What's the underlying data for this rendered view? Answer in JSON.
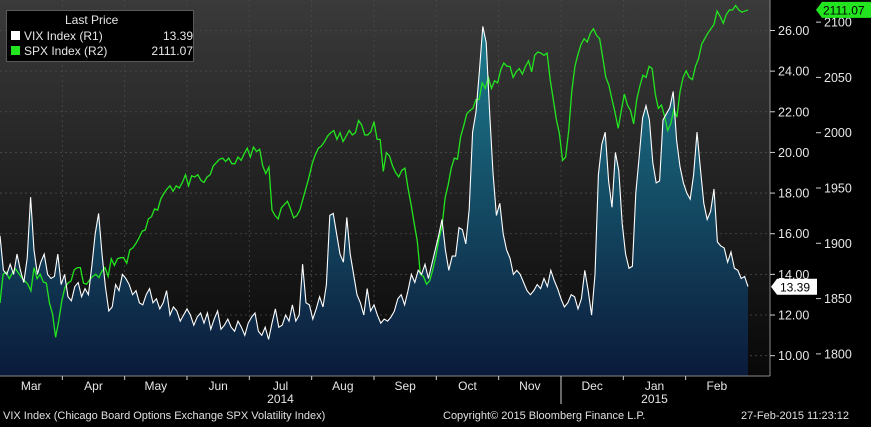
{
  "legend": {
    "title": "Last Price",
    "vix_label": "VIX Index  (R1)",
    "vix_value": "13.39",
    "spx_label": "SPX Index  (R2)",
    "spx_value": "2111.07"
  },
  "footer": {
    "source": "VIX Index (Chicago Board Options Exchange SPX Volatility Index)",
    "copyright": "Copyright© 2015 Bloomberg Finance L.P.",
    "timestamp": "27-Feb-2015 11:23:12"
  },
  "colors": {
    "background": "#000000",
    "vix_line": "#ffffff",
    "vix_fill_top": "#1d7d8f",
    "vix_fill_bottom": "#0b1a3a",
    "spx_line": "#23e51f",
    "grid": "#4a4a4a"
  },
  "chart_data": {
    "type": "line",
    "x_labels": [
      "Mar",
      "Apr",
      "May",
      "Jun",
      "Jul",
      "Aug",
      "Sep",
      "Oct",
      "Nov",
      "Dec",
      "Jan",
      "Feb"
    ],
    "year_labels": [
      "2014",
      "2015"
    ],
    "grid": true,
    "axes": {
      "vix_axis": {
        "ticks": [
          "10.00",
          "12.00",
          "14.00",
          "16.00",
          "18.00",
          "20.00",
          "22.00",
          "24.00",
          "26.00"
        ],
        "ylim": [
          9,
          27.5
        ]
      },
      "spx_axis": {
        "ticks": [
          "1800",
          "1850",
          "1900",
          "1950",
          "2000",
          "2050",
          "2100"
        ],
        "ylim": [
          1780,
          2120
        ]
      }
    },
    "last_value_tags": {
      "vix": "13.39",
      "spx": "2111.07"
    },
    "series": [
      {
        "name": "VIX Index  (R1)",
        "axis": "vix_axis",
        "values": [
          15.9,
          14.2,
          14.0,
          14.5,
          14.0,
          15.0,
          14.2,
          13.6,
          14.8,
          17.8,
          15.2,
          14.0,
          14.6,
          15.0,
          14.0,
          13.8,
          13.9,
          15.0,
          13.5,
          14.0,
          12.9,
          12.7,
          13.4,
          13.6,
          12.9,
          13.3,
          13.0,
          14.4,
          16.0,
          17.0,
          15.0,
          13.4,
          12.2,
          12.4,
          13.5,
          13.2,
          14.0,
          13.8,
          13.5,
          13.0,
          13.2,
          12.6,
          12.5,
          13.0,
          13.3,
          12.6,
          12.8,
          12.3,
          12.6,
          13.2,
          12.0,
          12.4,
          12.2,
          11.7,
          12.0,
          12.3,
          12.0,
          11.5,
          11.9,
          12.1,
          11.6,
          12.1,
          11.3,
          11.8,
          12.2,
          11.3,
          11.5,
          11.8,
          11.4,
          11.2,
          11.7,
          11.4,
          11.0,
          11.6,
          11.9,
          12.1,
          11.2,
          11.0,
          11.4,
          10.8,
          11.6,
          12.3,
          11.4,
          11.5,
          12.0,
          11.7,
          12.5,
          11.7,
          12.0,
          14.5,
          12.6,
          12.5,
          11.8,
          12.3,
          12.9,
          12.4,
          13.5,
          16.9,
          17.0,
          16.0,
          15.0,
          14.6,
          16.8,
          15.0,
          14.0,
          13.0,
          12.6,
          12.0,
          13.3,
          12.2,
          12.5,
          12.0,
          11.6,
          11.8,
          11.7,
          11.9,
          12.2,
          12.8,
          13.0,
          12.5,
          13.2,
          14.0,
          13.6,
          14.2,
          14.0,
          14.5,
          13.8,
          14.5,
          15.2,
          15.9,
          16.7,
          15.2,
          14.2,
          14.9,
          14.9,
          16.3,
          16.2,
          15.5,
          17.2,
          21.0,
          22.0,
          24.0,
          26.2,
          25.4,
          22.0,
          19.0,
          16.9,
          17.5,
          16.0,
          15.2,
          14.8,
          14.0,
          14.2,
          14.0,
          13.6,
          13.2,
          13.0,
          13.2,
          13.5,
          13.3,
          13.8,
          13.4,
          14.2,
          13.7,
          13.3,
          12.8,
          12.4,
          12.6,
          13.0,
          12.9,
          12.3,
          12.8,
          14.2,
          13.2,
          12.0,
          14.0,
          18.9,
          20.4,
          21.0,
          18.6,
          17.3,
          20.0,
          19.1,
          16.5,
          15.0,
          14.3,
          14.4,
          18.0,
          19.8,
          21.7,
          22.3,
          21.6,
          19.5,
          18.5,
          18.6,
          21.6,
          21.9,
          22.2,
          23.0,
          20.6,
          19.3,
          18.5,
          18.0,
          17.7,
          18.9,
          21.0,
          19.2,
          17.5,
          16.7,
          17.1,
          18.2,
          15.6,
          15.4,
          15.3,
          14.6,
          15.1,
          14.3,
          14.2,
          13.8,
          13.9,
          13.4
        ]
      },
      {
        "name": "SPX Index  (R2)",
        "axis": "spx_axis",
        "values": [
          1846,
          1872,
          1874,
          1868,
          1873,
          1877,
          1873,
          1869,
          1866,
          1863,
          1857,
          1878,
          1868,
          1872,
          1865,
          1864,
          1846,
          1836,
          1815,
          1830,
          1848,
          1860,
          1864,
          1866,
          1876,
          1878,
          1878,
          1864,
          1863,
          1867,
          1870,
          1872,
          1869,
          1875,
          1878,
          1870,
          1886,
          1880,
          1886,
          1887,
          1887,
          1882,
          1894,
          1896,
          1900,
          1905,
          1911,
          1912,
          1922,
          1924,
          1931,
          1930,
          1940,
          1945,
          1949,
          1952,
          1947,
          1952,
          1950,
          1955,
          1962,
          1952,
          1961,
          1960,
          1962,
          1957,
          1955,
          1960,
          1962,
          1970,
          1973,
          1976,
          1977,
          1974,
          1977,
          1972,
          1972,
          1978,
          1975,
          1981,
          1986,
          1978,
          1987,
          1983,
          1985,
          1970,
          1963,
          1969,
          1930,
          1925,
          1922,
          1932,
          1935,
          1938,
          1931,
          1923,
          1925,
          1930,
          1940,
          1950,
          1960,
          1972,
          1980,
          1986,
          1988,
          1992,
          1997,
          2000,
          2002,
          1994,
          2000,
          1992,
          1997,
          2002,
          1998,
          2000,
          2011,
          2007,
          1998,
          1998,
          2001,
          2010,
          1994,
          1994,
          1965,
          1982,
          1979,
          1970,
          1964,
          1960,
          1966,
          1968,
          1950,
          1935,
          1918,
          1902,
          1872,
          1870,
          1863,
          1866,
          1876,
          1888,
          1904,
          1915,
          1941,
          1953,
          1968,
          1977,
          1976,
          1996,
          2006,
          2017,
          2020,
          2022,
          2030,
          2030,
          2045,
          2040,
          2050,
          2040,
          2047,
          2045,
          2057,
          2063,
          2060,
          2060,
          2050,
          2055,
          2058,
          2053,
          2060,
          2065,
          2055,
          2070,
          2073,
          2072,
          2070,
          2072,
          2048,
          2030,
          2012,
          1999,
          1975,
          1978,
          2002,
          2038,
          2060,
          2071,
          2080,
          2085,
          2082,
          2090,
          2094,
          2088,
          2085,
          2068,
          2050,
          2043,
          2030,
          2018,
          2004,
          2020,
          2035,
          2025,
          2020,
          2008,
          2030,
          2042,
          2052,
          2050,
          2060,
          2058,
          2035,
          2022,
          2025,
          2015,
          2002,
          2008,
          2021,
          2014,
          2037,
          2050,
          2056,
          2050,
          2048,
          2060,
          2067,
          2080,
          2085,
          2090,
          2094,
          2098,
          2110,
          2105,
          2099,
          2107,
          2111,
          2111,
          2115,
          2111,
          2109,
          2110,
          2111
        ]
      }
    ]
  }
}
